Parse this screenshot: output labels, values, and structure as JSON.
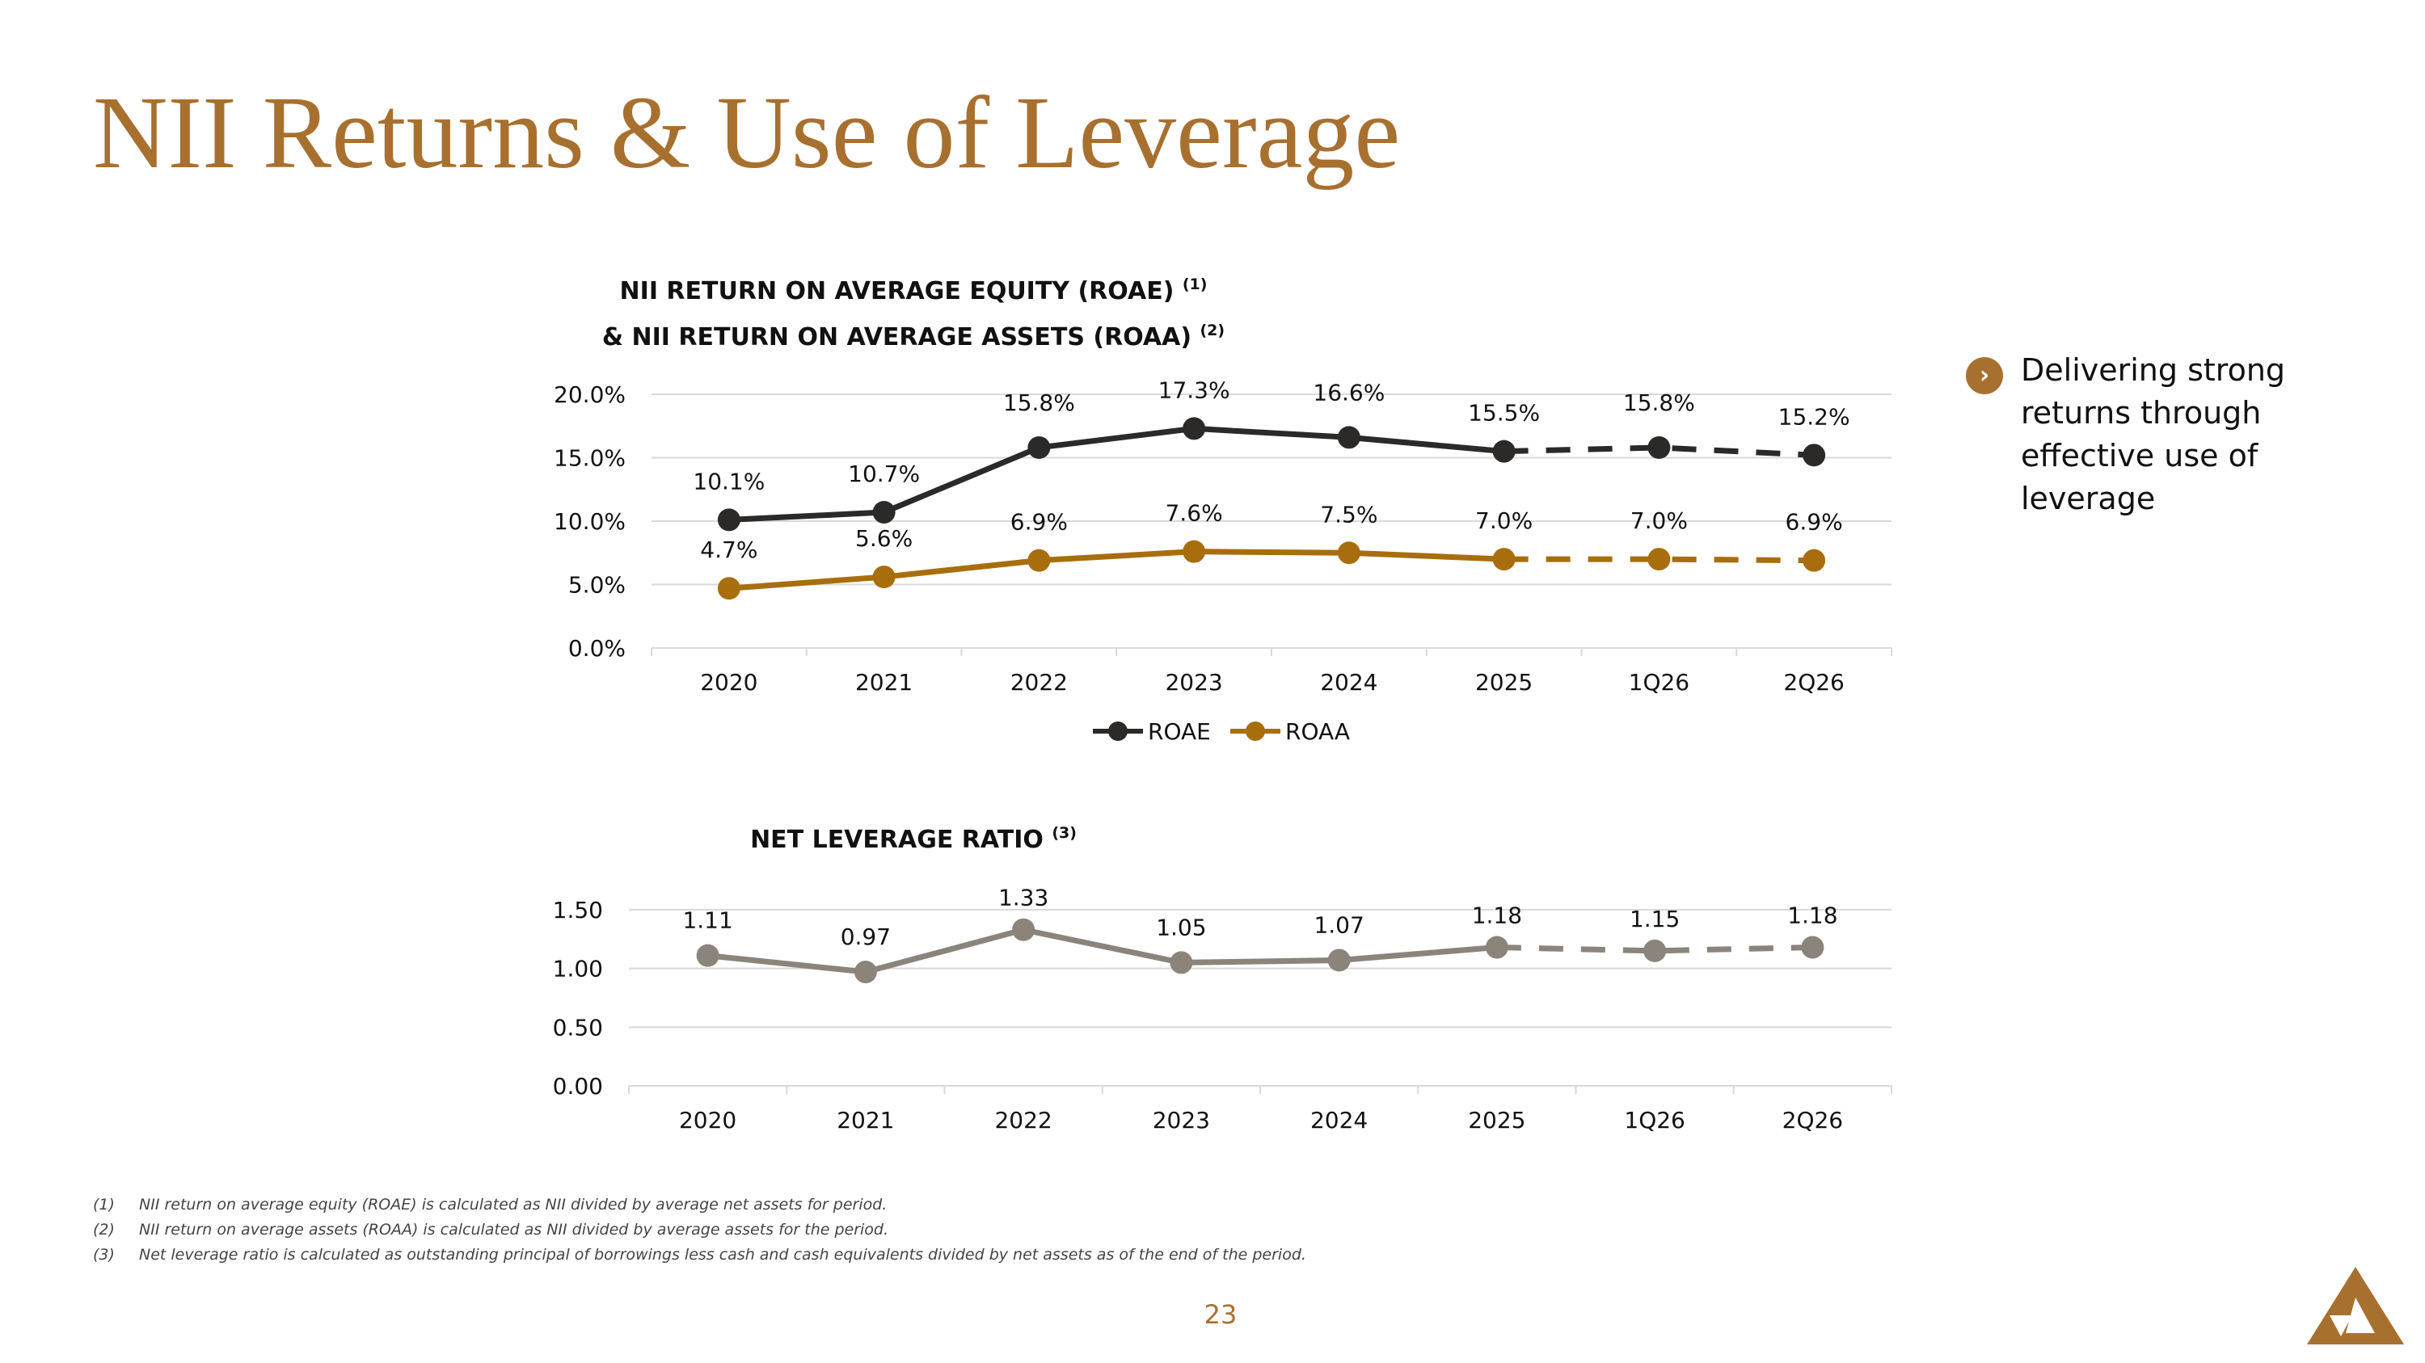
{
  "slide_title": "NII Returns & Use of Leverage",
  "chart1": {
    "title_line1": "NII RETURN ON AVERAGE EQUITY (ROAE)",
    "title_line1_sup": "(1)",
    "title_line2": "& NII RETURN ON AVERAGE ASSETS (ROAA)",
    "title_line2_sup": "(2)"
  },
  "chart2": {
    "title": "NET LEVERAGE RATIO",
    "title_sup": "(3)"
  },
  "side_note": {
    "icon": "chevron-right-icon",
    "text": "Delivering strong returns through effective use of leverage"
  },
  "footnotes": [
    {
      "n": "(1)",
      "text": "NII return on average equity (ROAE) is calculated as NII divided by average net assets for period."
    },
    {
      "n": "(2)",
      "text": "NII return on average assets (ROAA) is calculated as NII divided by average assets for the period."
    },
    {
      "n": "(3)",
      "text": "Net leverage ratio is calculated as outstanding principal of borrowings less cash and cash equivalents divided by net assets as of the end of the period."
    }
  ],
  "page_number": "23",
  "colors": {
    "accent": "#a8702f",
    "roae": "#2b2a28",
    "roaa": "#a86e0e",
    "leverage": "#8a847b",
    "grid": "#d9d9d9"
  },
  "chart_data": [
    {
      "type": "line",
      "categories": [
        "2020",
        "2021",
        "2022",
        "2023",
        "2024",
        "2025",
        "1Q26",
        "2Q26"
      ],
      "series": [
        {
          "name": "ROAE",
          "values": [
            10.1,
            10.7,
            15.8,
            17.3,
            16.6,
            15.5,
            15.8,
            15.2
          ],
          "labels": [
            "10.1%",
            "10.7%",
            "15.8%",
            "17.3%",
            "16.6%",
            "15.5%",
            "15.8%",
            "15.2%"
          ],
          "dashed_from_index": 5
        },
        {
          "name": "ROAA",
          "values": [
            4.7,
            5.6,
            6.9,
            7.6,
            7.5,
            7.0,
            7.0,
            6.9
          ],
          "labels": [
            "4.7%",
            "5.6%",
            "6.9%",
            "7.6%",
            "7.5%",
            "7.0%",
            "7.0%",
            "6.9%"
          ],
          "dashed_from_index": 5
        }
      ],
      "yticks": [
        "0.0%",
        "5.0%",
        "10.0%",
        "15.0%",
        "20.0%"
      ],
      "ylim": [
        0,
        20
      ],
      "grid": true,
      "legend": "bottom"
    },
    {
      "type": "line",
      "categories": [
        "2020",
        "2021",
        "2022",
        "2023",
        "2024",
        "2025",
        "1Q26",
        "2Q26"
      ],
      "series": [
        {
          "values": [
            1.11,
            0.97,
            1.33,
            1.05,
            1.07,
            1.18,
            1.15,
            1.18
          ],
          "labels": [
            "1.11",
            "0.97",
            "1.33",
            "1.05",
            "1.07",
            "1.18",
            "1.15",
            "1.18"
          ],
          "dashed_from_index": 5
        }
      ],
      "yticks": [
        "0.00",
        "0.50",
        "1.00",
        "1.50"
      ],
      "ylim": [
        0,
        1.5
      ],
      "grid": true,
      "legend": "none"
    }
  ]
}
